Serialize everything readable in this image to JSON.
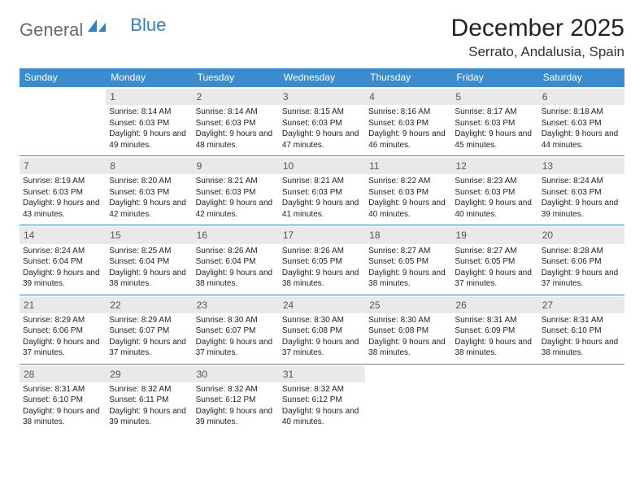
{
  "logo": {
    "text_gray": "General",
    "text_blue": "Blue"
  },
  "title": {
    "month": "December 2025",
    "location": "Serrato, Andalusia, Spain"
  },
  "colors": {
    "header_bg": "#3a8ccf",
    "header_text": "#ffffff",
    "daynum_bg": "#e9e9e9",
    "daynum_text": "#555555",
    "border": "#3a8ccf",
    "body_text": "#222222"
  },
  "dow": [
    "Sunday",
    "Monday",
    "Tuesday",
    "Wednesday",
    "Thursday",
    "Friday",
    "Saturday"
  ],
  "cells": [
    {
      "n": "",
      "empty": true
    },
    {
      "n": "1",
      "sr": "8:14 AM",
      "ss": "6:03 PM",
      "dh": 9,
      "dm": 49
    },
    {
      "n": "2",
      "sr": "8:14 AM",
      "ss": "6:03 PM",
      "dh": 9,
      "dm": 48
    },
    {
      "n": "3",
      "sr": "8:15 AM",
      "ss": "6:03 PM",
      "dh": 9,
      "dm": 47
    },
    {
      "n": "4",
      "sr": "8:16 AM",
      "ss": "6:03 PM",
      "dh": 9,
      "dm": 46
    },
    {
      "n": "5",
      "sr": "8:17 AM",
      "ss": "6:03 PM",
      "dh": 9,
      "dm": 45
    },
    {
      "n": "6",
      "sr": "8:18 AM",
      "ss": "6:03 PM",
      "dh": 9,
      "dm": 44
    },
    {
      "n": "7",
      "sr": "8:19 AM",
      "ss": "6:03 PM",
      "dh": 9,
      "dm": 43
    },
    {
      "n": "8",
      "sr": "8:20 AM",
      "ss": "6:03 PM",
      "dh": 9,
      "dm": 42
    },
    {
      "n": "9",
      "sr": "8:21 AM",
      "ss": "6:03 PM",
      "dh": 9,
      "dm": 42
    },
    {
      "n": "10",
      "sr": "8:21 AM",
      "ss": "6:03 PM",
      "dh": 9,
      "dm": 41
    },
    {
      "n": "11",
      "sr": "8:22 AM",
      "ss": "6:03 PM",
      "dh": 9,
      "dm": 40
    },
    {
      "n": "12",
      "sr": "8:23 AM",
      "ss": "6:03 PM",
      "dh": 9,
      "dm": 40
    },
    {
      "n": "13",
      "sr": "8:24 AM",
      "ss": "6:03 PM",
      "dh": 9,
      "dm": 39
    },
    {
      "n": "14",
      "sr": "8:24 AM",
      "ss": "6:04 PM",
      "dh": 9,
      "dm": 39
    },
    {
      "n": "15",
      "sr": "8:25 AM",
      "ss": "6:04 PM",
      "dh": 9,
      "dm": 38
    },
    {
      "n": "16",
      "sr": "8:26 AM",
      "ss": "6:04 PM",
      "dh": 9,
      "dm": 38
    },
    {
      "n": "17",
      "sr": "8:26 AM",
      "ss": "6:05 PM",
      "dh": 9,
      "dm": 38
    },
    {
      "n": "18",
      "sr": "8:27 AM",
      "ss": "6:05 PM",
      "dh": 9,
      "dm": 38
    },
    {
      "n": "19",
      "sr": "8:27 AM",
      "ss": "6:05 PM",
      "dh": 9,
      "dm": 37
    },
    {
      "n": "20",
      "sr": "8:28 AM",
      "ss": "6:06 PM",
      "dh": 9,
      "dm": 37
    },
    {
      "n": "21",
      "sr": "8:29 AM",
      "ss": "6:06 PM",
      "dh": 9,
      "dm": 37
    },
    {
      "n": "22",
      "sr": "8:29 AM",
      "ss": "6:07 PM",
      "dh": 9,
      "dm": 37
    },
    {
      "n": "23",
      "sr": "8:30 AM",
      "ss": "6:07 PM",
      "dh": 9,
      "dm": 37
    },
    {
      "n": "24",
      "sr": "8:30 AM",
      "ss": "6:08 PM",
      "dh": 9,
      "dm": 37
    },
    {
      "n": "25",
      "sr": "8:30 AM",
      "ss": "6:08 PM",
      "dh": 9,
      "dm": 38
    },
    {
      "n": "26",
      "sr": "8:31 AM",
      "ss": "6:09 PM",
      "dh": 9,
      "dm": 38
    },
    {
      "n": "27",
      "sr": "8:31 AM",
      "ss": "6:10 PM",
      "dh": 9,
      "dm": 38
    },
    {
      "n": "28",
      "sr": "8:31 AM",
      "ss": "6:10 PM",
      "dh": 9,
      "dm": 38
    },
    {
      "n": "29",
      "sr": "8:32 AM",
      "ss": "6:11 PM",
      "dh": 9,
      "dm": 39
    },
    {
      "n": "30",
      "sr": "8:32 AM",
      "ss": "6:12 PM",
      "dh": 9,
      "dm": 39
    },
    {
      "n": "31",
      "sr": "8:32 AM",
      "ss": "6:12 PM",
      "dh": 9,
      "dm": 40
    },
    {
      "n": "",
      "empty": true
    },
    {
      "n": "",
      "empty": true
    },
    {
      "n": "",
      "empty": true
    }
  ],
  "labels": {
    "sunrise": "Sunrise:",
    "sunset": "Sunset:",
    "daylight_prefix": "Daylight:",
    "hours_word": "hours",
    "and_word": "and",
    "minutes_word": "minutes."
  }
}
